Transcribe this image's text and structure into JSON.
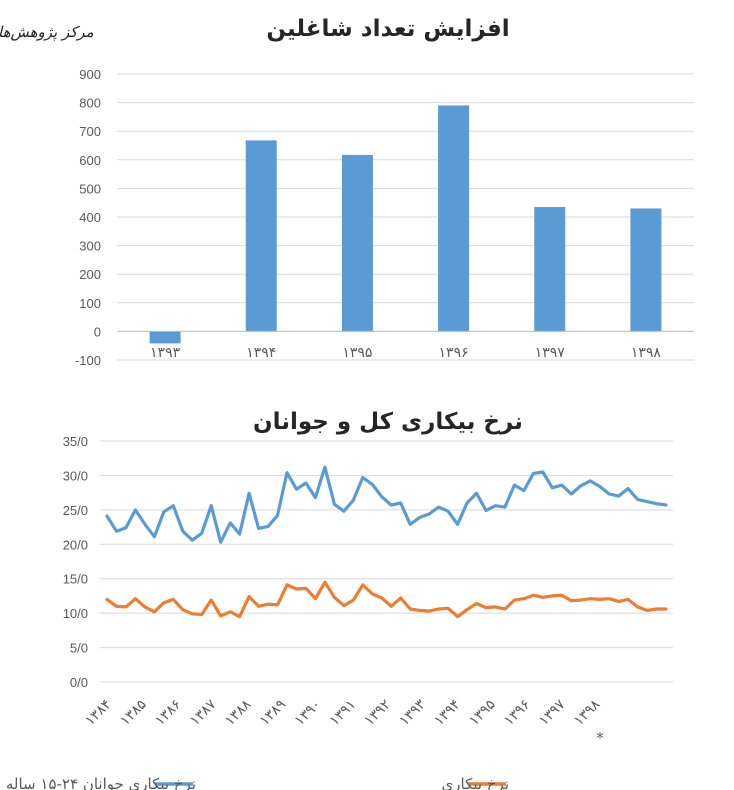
{
  "logo": {
    "line1": "",
    "line2": "مرکز پژوهش‌ها"
  },
  "chart_data": [
    {
      "type": "bar",
      "title": "افزایش تعداد شاغلین",
      "categories": [
        "۱۳۹۳",
        "۱۳۹۴",
        "۱۳۹۵",
        "۱۳۹۶",
        "۱۳۹۷",
        "۱۳۹۸"
      ],
      "values": [
        -42,
        668,
        617,
        790,
        435,
        430
      ],
      "ylim": [
        -100,
        900
      ],
      "yticks": [
        "900",
        "800",
        "700",
        "600",
        "500",
        "400",
        "300",
        "200",
        "100",
        "0",
        "-100"
      ],
      "color": "#5B9BD5",
      "grid": true
    },
    {
      "type": "line",
      "title": "نرخ بیکاری کل و جوانان",
      "x_labels": [
        "۱۳۸۴",
        "۱۳۸۵",
        "۱۳۸۶",
        "۱۳۸۷",
        "۱۳۸۸",
        "۱۳۸۹",
        "۱۳۹۰",
        "۱۳۹۱",
        "۱۳۹۲",
        "۱۳۹۳",
        "۱۳۹۴",
        "۱۳۹۵",
        "۱۳۹۶",
        "۱۳۹۷",
        "۱۳۹۸"
      ],
      "x_note": "*",
      "yticks": [
        "35/0",
        "30/0",
        "25/0",
        "20/0",
        "15/0",
        "10/0",
        "5/0",
        "0/0"
      ],
      "ylim": [
        0,
        35
      ],
      "grid": true,
      "legend_position": "bottom",
      "series": [
        {
          "name": "نرخ بیکاری جوانان ۲۴-۱۵ ساله",
          "color": "#5B9BD5",
          "values": [
            24.1,
            21.9,
            22.4,
            25.0,
            22.9,
            21.1,
            24.7,
            25.6,
            21.9,
            20.6,
            21.6,
            25.6,
            20.3,
            23.1,
            21.5,
            27.4,
            22.3,
            22.6,
            24.2,
            30.4,
            28.0,
            28.9,
            26.8,
            31.2,
            25.8,
            24.8,
            26.4,
            29.7,
            28.7,
            26.9,
            25.7,
            26.0,
            22.9,
            23.9,
            24.4,
            25.4,
            24.8,
            22.9,
            26.0,
            27.4,
            24.9,
            25.6,
            25.4,
            28.6,
            27.8,
            30.3,
            30.5,
            28.2,
            28.6,
            27.3,
            28.5,
            29.2,
            28.4,
            27.3,
            27.0,
            28.1,
            26.5,
            26.2,
            25.9,
            25.7
          ]
        },
        {
          "name": "نرخ بیکاری",
          "color": "#ED7D31",
          "values": [
            12.0,
            11.0,
            10.9,
            12.1,
            10.9,
            10.2,
            11.5,
            12.0,
            10.5,
            9.9,
            9.8,
            11.9,
            9.6,
            10.2,
            9.5,
            12.4,
            11.0,
            11.3,
            11.2,
            14.1,
            13.5,
            13.6,
            12.1,
            14.5,
            12.3,
            11.1,
            11.9,
            14.1,
            12.8,
            12.2,
            11.0,
            12.2,
            10.6,
            10.4,
            10.3,
            10.6,
            10.7,
            9.5,
            10.5,
            11.4,
            10.8,
            10.9,
            10.6,
            11.9,
            12.1,
            12.6,
            12.3,
            12.5,
            12.6,
            11.8,
            11.9,
            12.1,
            12.0,
            12.1,
            11.7,
            12.0,
            10.9,
            10.4,
            10.6,
            10.6
          ]
        }
      ]
    }
  ]
}
